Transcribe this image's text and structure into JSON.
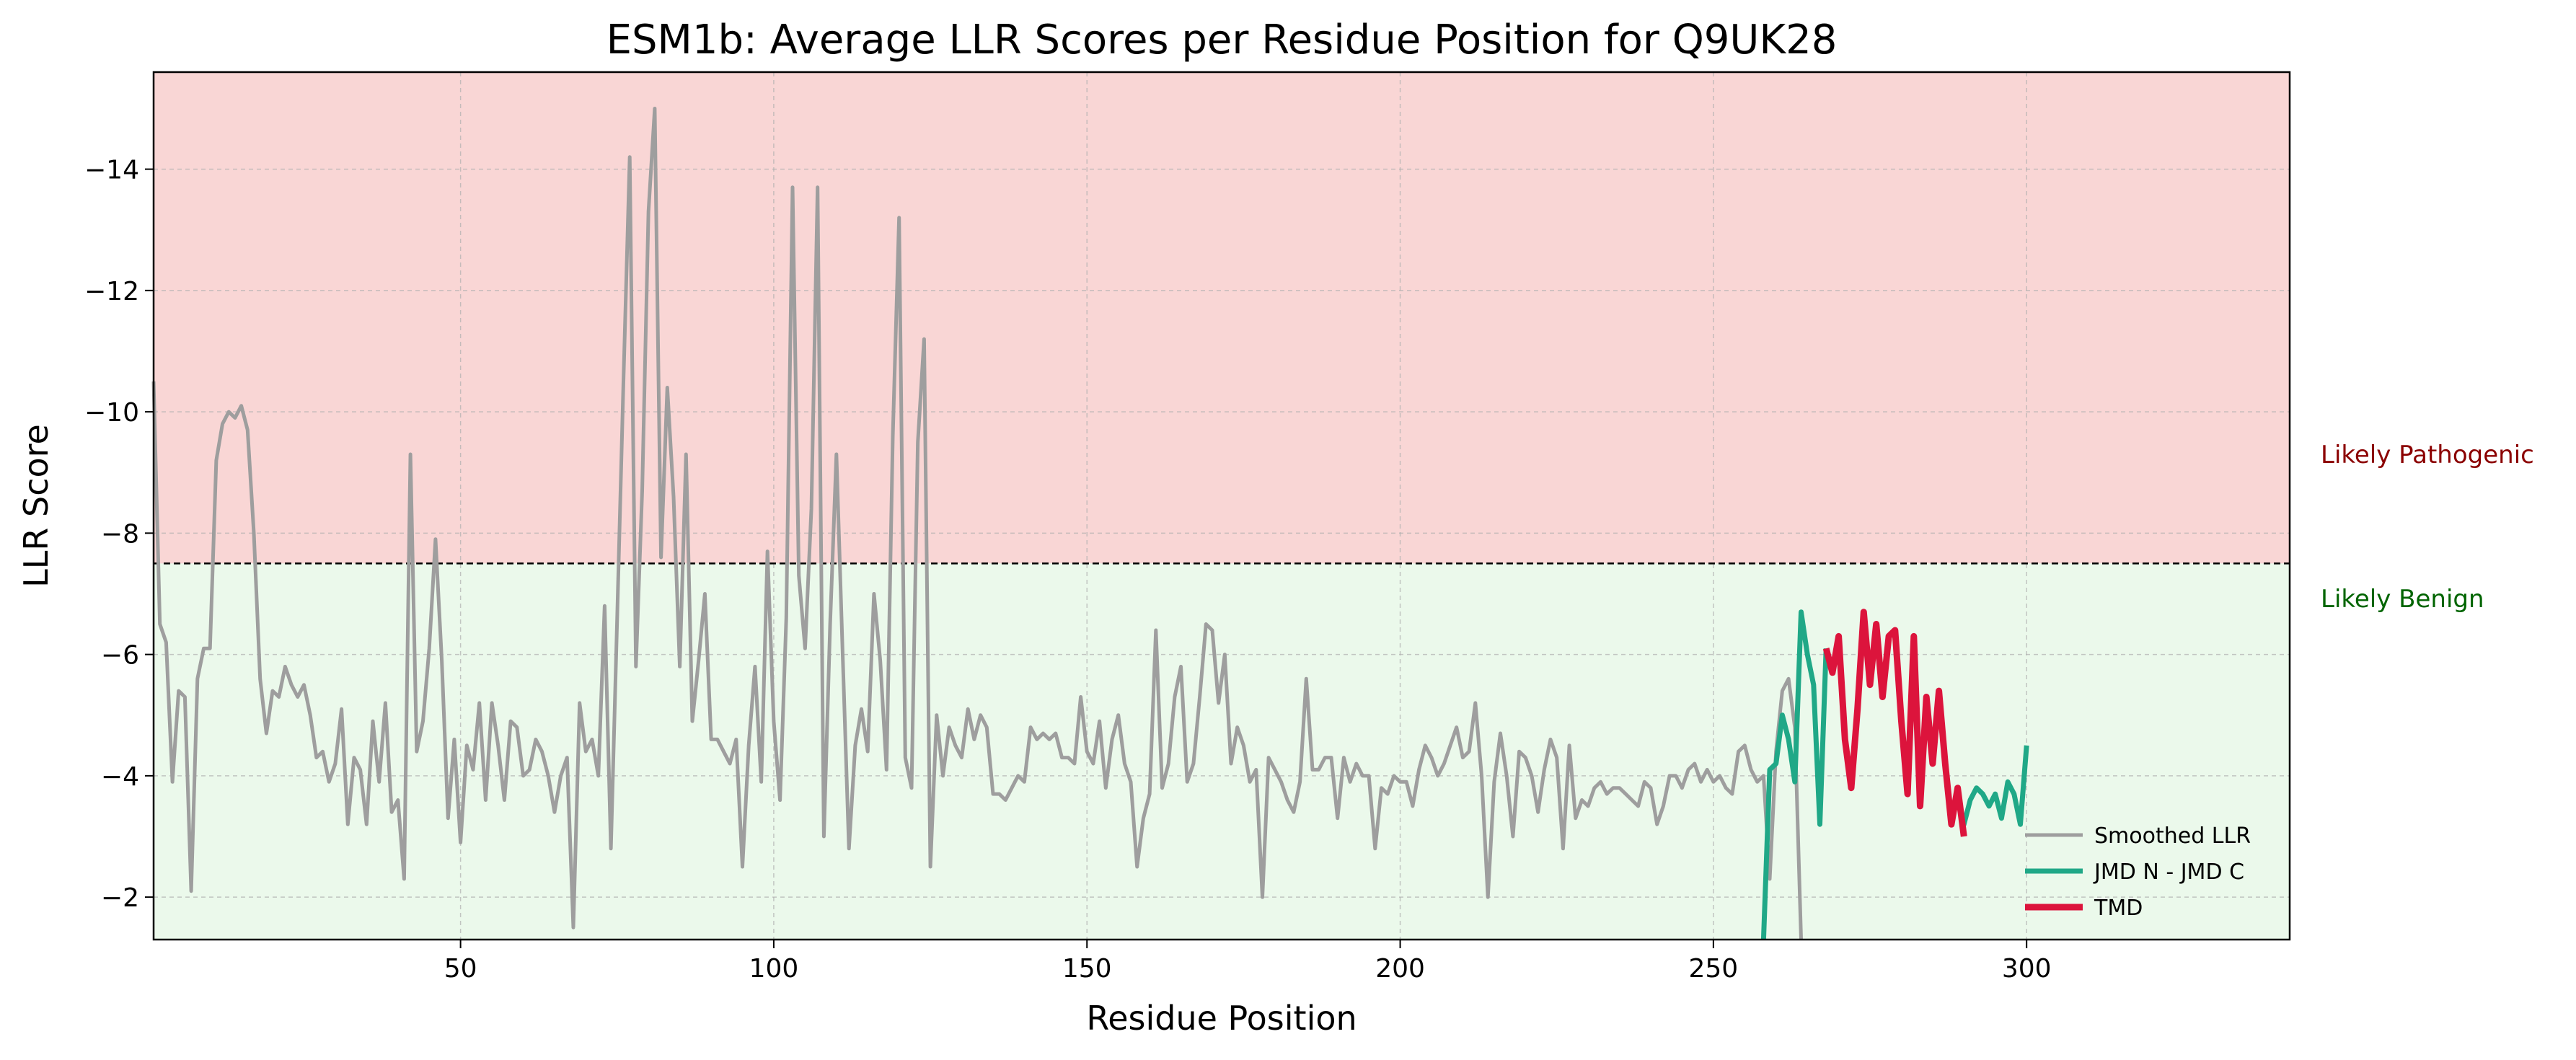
{
  "chart_data": {
    "type": "line",
    "title": "ESM1b: Average LLR Scores per Residue Position for Q9UK28",
    "xlabel": "Residue Position",
    "ylabel": "LLR Score",
    "xlim": [
      1,
      342
    ],
    "ylim": [
      -1.3,
      -15.6
    ],
    "y_inverted": true,
    "xticks": [
      50,
      100,
      150,
      200,
      250,
      300
    ],
    "yticks": [
      -2,
      -4,
      -6,
      -8,
      -10,
      -12,
      -14
    ],
    "ytick_labels": [
      "−2",
      "−4",
      "−6",
      "−8",
      "−10",
      "−12",
      "−14"
    ],
    "grid": true,
    "threshold": -7.5,
    "zones": {
      "pathogenic": {
        "label": "Likely Pathogenic",
        "color": "#f9d6d5",
        "text_color": "#8b0000"
      },
      "benign": {
        "label": "Likely Benign",
        "color": "#ebf9eb",
        "text_color": "#006400"
      }
    },
    "legend_position": "lower-right",
    "series": [
      {
        "name": "Smoothed LLR",
        "color": "#9e9e9e",
        "x_start": 1,
        "y": [
          -10.5,
          -6.5,
          -6.2,
          -3.9,
          -5.4,
          -5.3,
          -2.1,
          -5.6,
          -6.1,
          -6.1,
          -9.2,
          -9.8,
          -10.0,
          -9.9,
          -10.1,
          -9.7,
          -8.0,
          -5.6,
          -4.7,
          -5.4,
          -5.3,
          -5.8,
          -5.5,
          -5.3,
          -5.5,
          -5.0,
          -4.3,
          -4.4,
          -3.9,
          -4.2,
          -5.1,
          -3.2,
          -4.3,
          -4.1,
          -3.2,
          -4.9,
          -3.9,
          -5.2,
          -3.4,
          -3.6,
          -2.3,
          -9.3,
          -4.4,
          -4.9,
          -6.1,
          -7.9,
          -5.9,
          -3.3,
          -4.6,
          -2.9,
          -4.5,
          -4.1,
          -5.2,
          -3.6,
          -5.2,
          -4.5,
          -3.6,
          -4.9,
          -4.8,
          -4.0,
          -4.1,
          -4.6,
          -4.4,
          -4.0,
          -3.4,
          -4.0,
          -4.3,
          -1.5,
          -5.2,
          -4.4,
          -4.6,
          -4.0,
          -6.8,
          -2.8,
          -6.6,
          -10.5,
          -14.2,
          -5.8,
          -8.7,
          -13.3,
          -15.0,
          -7.6,
          -10.4,
          -8.6,
          -5.8,
          -9.3,
          -4.9,
          -5.9,
          -7.0,
          -4.6,
          -4.6,
          -4.4,
          -4.2,
          -4.6,
          -2.5,
          -4.5,
          -5.8,
          -3.9,
          -7.7,
          -4.9,
          -3.6,
          -6.6,
          -13.7,
          -7.3,
          -6.1,
          -8.4,
          -13.7,
          -3.0,
          -6.5,
          -9.3,
          -6.0,
          -2.8,
          -4.5,
          -5.1,
          -4.4,
          -7.0,
          -5.9,
          -4.1,
          -9.6,
          -13.2,
          -4.3,
          -3.8,
          -9.5,
          -11.2,
          -2.5,
          -5.0,
          -4.0,
          -4.8,
          -4.5,
          -4.3,
          -5.1,
          -4.6,
          -5.0,
          -4.8,
          -3.7,
          -3.7,
          -3.6,
          -3.8,
          -4.0,
          -3.9,
          -4.8,
          -4.6,
          -4.7,
          -4.6,
          -4.7,
          -4.3,
          -4.3,
          -4.2,
          -5.3,
          -4.4,
          -4.2,
          -4.9,
          -3.8,
          -4.6,
          -5.0,
          -4.2,
          -3.9,
          -2.5,
          -3.3,
          -3.7,
          -6.4,
          -3.8,
          -4.2,
          -5.3,
          -5.8,
          -3.9,
          -4.2,
          -5.3,
          -6.5,
          -6.4,
          -5.2,
          -6.0,
          -4.2,
          -4.8,
          -4.5,
          -3.9,
          -4.1,
          -2.0,
          -4.3,
          -4.1,
          -3.9,
          -3.6,
          -3.4,
          -3.9,
          -5.6,
          -4.1,
          -4.1,
          -4.3,
          -4.3,
          -3.3,
          -4.3,
          -3.9,
          -4.2,
          -4.0,
          -4.0,
          -2.8,
          -3.8,
          -3.7,
          -4.0,
          -3.9,
          -3.9,
          -3.5,
          -4.1,
          -4.5,
          -4.3,
          -4.0,
          -4.2,
          -4.5,
          -4.8,
          -4.3,
          -4.4,
          -5.2,
          -4.0,
          -2.0,
          -3.9,
          -4.7,
          -4.0,
          -3.0,
          -4.4,
          -4.3,
          -4.0,
          -3.4,
          -4.1,
          -4.6,
          -4.3,
          -2.8,
          -4.5,
          -3.3,
          -3.6,
          -3.5,
          -3.8,
          -3.9,
          -3.7,
          -3.8,
          -3.8,
          -3.7,
          -3.6,
          -3.5,
          -3.9,
          -3.8,
          -3.2,
          -3.5,
          -4.0,
          -4.0,
          -3.8,
          -4.1,
          -4.2,
          -3.9,
          -4.1,
          -3.9,
          -4.0,
          -3.8,
          -3.7,
          -4.4,
          -4.5,
          -4.1,
          -3.9,
          -4.0,
          -2.3,
          -4.4,
          -5.4,
          -5.6,
          -4.8,
          -1.3
        ]
      },
      {
        "name": "JMD N - JMD C",
        "color": "#20a887",
        "segments": [
          {
            "x_start": 258,
            "y": [
              -1.3,
              -4.1,
              -4.2,
              -5.0,
              -4.6,
              -3.9,
              -6.7,
              -6.0,
              -5.5,
              -3.2,
              -6.1
            ]
          },
          {
            "x_start": 289,
            "y": [
              -3.7,
              -3.2,
              -3.6,
              -3.8,
              -3.7,
              -3.5,
              -3.7,
              -3.3,
              -3.9,
              -3.7,
              -3.2,
              -4.5
            ]
          }
        ]
      },
      {
        "name": "TMD",
        "color": "#dc143c",
        "x_start": 268,
        "y": [
          -6.1,
          -5.7,
          -6.3,
          -4.6,
          -3.8,
          -5.1,
          -6.7,
          -5.5,
          -6.5,
          -5.3,
          -6.3,
          -6.4,
          -4.9,
          -3.7,
          -6.3,
          -3.5,
          -5.3,
          -4.2,
          -5.4,
          -4.2,
          -3.2,
          -3.8,
          -3.0
        ]
      }
    ]
  }
}
